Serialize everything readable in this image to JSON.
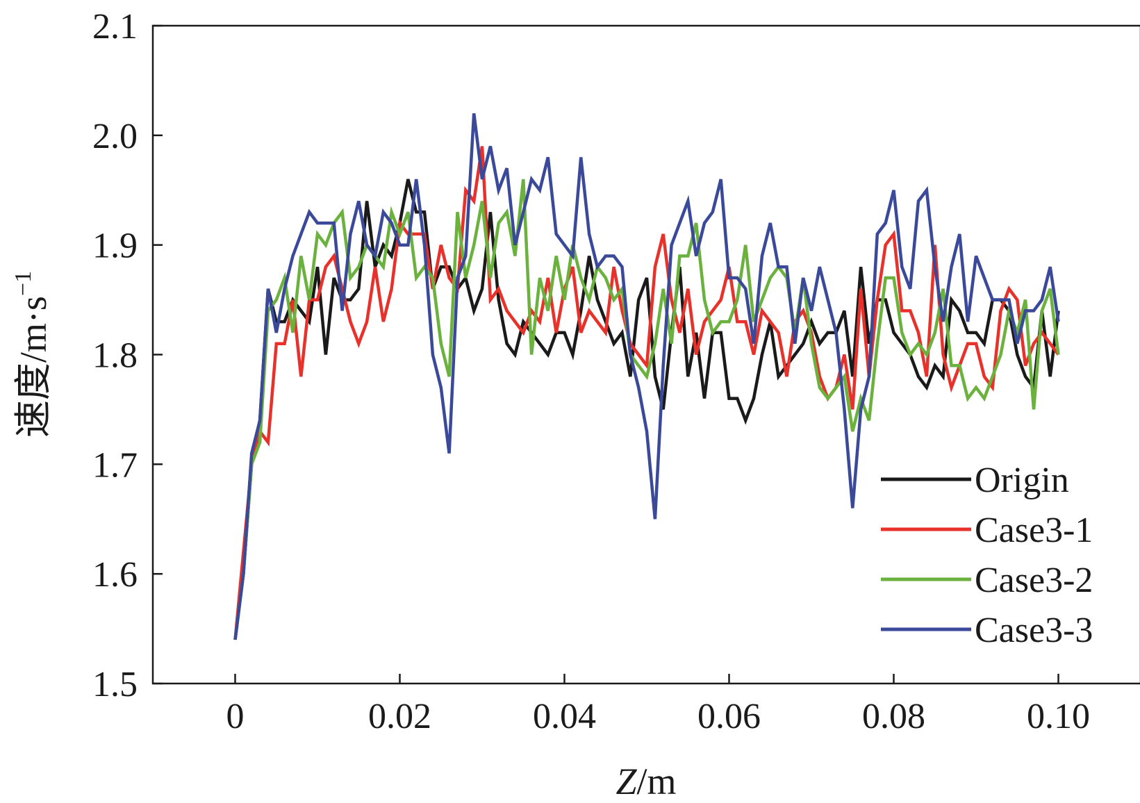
{
  "chart_data": {
    "type": "line",
    "xlabel_italic": "Z",
    "xlabel_rest": "/m",
    "ylabel_main": "速度/m·s",
    "ylabel_sup": "−1",
    "xlim": [
      -0.01,
      0.11
    ],
    "ylim": [
      1.5,
      2.1
    ],
    "xticks": [
      0,
      0.02,
      0.04,
      0.06,
      0.08,
      0.1
    ],
    "xtick_labels": [
      "0",
      "0.02",
      "0.04",
      "0.06",
      "0.08",
      "0.10"
    ],
    "yticks": [
      1.5,
      1.6,
      1.7,
      1.8,
      1.9,
      2.0,
      2.1
    ],
    "ytick_labels": [
      "1.5",
      "1.6",
      "1.7",
      "1.8",
      "1.9",
      "2.0",
      "2.1"
    ],
    "grid": false,
    "legend_position": "bottom-right",
    "x_start": 0,
    "x_step": 0.001,
    "series": [
      {
        "name": "Origin",
        "color": "#1a1a1a",
        "values": [
          1.54,
          1.6,
          1.7,
          1.74,
          1.86,
          1.83,
          1.83,
          1.85,
          1.84,
          1.83,
          1.88,
          1.8,
          1.87,
          1.85,
          1.85,
          1.86,
          1.94,
          1.88,
          1.9,
          1.89,
          1.92,
          1.96,
          1.93,
          1.93,
          1.86,
          1.88,
          1.88,
          1.86,
          1.87,
          1.84,
          1.86,
          1.93,
          1.85,
          1.81,
          1.8,
          1.83,
          1.82,
          1.81,
          1.8,
          1.82,
          1.82,
          1.8,
          1.84,
          1.89,
          1.85,
          1.83,
          1.81,
          1.82,
          1.78,
          1.85,
          1.87,
          1.78,
          1.75,
          1.82,
          1.88,
          1.78,
          1.82,
          1.76,
          1.82,
          1.82,
          1.76,
          1.76,
          1.74,
          1.76,
          1.8,
          1.83,
          1.78,
          1.79,
          1.8,
          1.81,
          1.83,
          1.81,
          1.82,
          1.82,
          1.84,
          1.78,
          1.88,
          1.81,
          1.85,
          1.85,
          1.82,
          1.81,
          1.8,
          1.78,
          1.77,
          1.79,
          1.78,
          1.85,
          1.84,
          1.82,
          1.82,
          1.81,
          1.85,
          1.85,
          1.84,
          1.8,
          1.78,
          1.77,
          1.84,
          1.78,
          1.84
        ]
      },
      {
        "name": "Case3-1",
        "color": "#e8312a",
        "values": [
          1.54,
          1.62,
          1.7,
          1.73,
          1.72,
          1.81,
          1.81,
          1.85,
          1.78,
          1.85,
          1.85,
          1.88,
          1.89,
          1.86,
          1.83,
          1.81,
          1.83,
          1.88,
          1.83,
          1.86,
          1.92,
          1.91,
          1.91,
          1.91,
          1.86,
          1.9,
          1.87,
          1.86,
          1.95,
          1.94,
          1.99,
          1.85,
          1.86,
          1.84,
          1.83,
          1.82,
          1.84,
          1.83,
          1.87,
          1.82,
          1.86,
          1.88,
          1.82,
          1.84,
          1.83,
          1.82,
          1.88,
          1.84,
          1.81,
          1.8,
          1.79,
          1.88,
          1.91,
          1.85,
          1.82,
          1.86,
          1.8,
          1.83,
          1.84,
          1.85,
          1.88,
          1.83,
          1.83,
          1.8,
          1.84,
          1.83,
          1.82,
          1.78,
          1.83,
          1.84,
          1.82,
          1.78,
          1.76,
          1.77,
          1.8,
          1.75,
          1.86,
          1.78,
          1.85,
          1.9,
          1.91,
          1.84,
          1.84,
          1.82,
          1.78,
          1.9,
          1.8,
          1.77,
          1.79,
          1.81,
          1.81,
          1.78,
          1.77,
          1.84,
          1.86,
          1.85,
          1.79,
          1.81,
          1.82,
          1.81,
          1.8
        ]
      },
      {
        "name": "Case3-2",
        "color": "#6ab23d",
        "values": [
          1.54,
          1.6,
          1.7,
          1.72,
          1.84,
          1.85,
          1.87,
          1.82,
          1.89,
          1.85,
          1.91,
          1.9,
          1.92,
          1.93,
          1.87,
          1.88,
          1.9,
          1.89,
          1.88,
          1.93,
          1.91,
          1.93,
          1.87,
          1.88,
          1.87,
          1.81,
          1.78,
          1.93,
          1.87,
          1.9,
          1.94,
          1.87,
          1.92,
          1.93,
          1.89,
          1.96,
          1.8,
          1.87,
          1.84,
          1.89,
          1.85,
          1.9,
          1.87,
          1.85,
          1.88,
          1.87,
          1.85,
          1.86,
          1.8,
          1.79,
          1.78,
          1.81,
          1.86,
          1.81,
          1.89,
          1.89,
          1.92,
          1.85,
          1.82,
          1.83,
          1.83,
          1.85,
          1.9,
          1.83,
          1.85,
          1.87,
          1.88,
          1.87,
          1.82,
          1.87,
          1.81,
          1.77,
          1.76,
          1.77,
          1.78,
          1.73,
          1.76,
          1.74,
          1.81,
          1.87,
          1.87,
          1.82,
          1.8,
          1.81,
          1.8,
          1.82,
          1.86,
          1.79,
          1.79,
          1.76,
          1.77,
          1.76,
          1.78,
          1.8,
          1.84,
          1.82,
          1.85,
          1.75,
          1.84,
          1.86,
          1.8
        ]
      },
      {
        "name": "Case3-3",
        "color": "#3a4999",
        "values": [
          1.54,
          1.6,
          1.71,
          1.74,
          1.86,
          1.82,
          1.86,
          1.89,
          1.91,
          1.93,
          1.92,
          1.92,
          1.92,
          1.84,
          1.91,
          1.94,
          1.9,
          1.89,
          1.93,
          1.92,
          1.9,
          1.9,
          1.96,
          1.9,
          1.8,
          1.77,
          1.71,
          1.87,
          1.89,
          2.02,
          1.96,
          1.99,
          1.95,
          1.97,
          1.9,
          1.93,
          1.96,
          1.95,
          1.98,
          1.91,
          1.9,
          1.89,
          1.98,
          1.91,
          1.88,
          1.89,
          1.89,
          1.88,
          1.8,
          1.77,
          1.73,
          1.65,
          1.79,
          1.9,
          1.92,
          1.94,
          1.89,
          1.92,
          1.93,
          1.96,
          1.87,
          1.87,
          1.86,
          1.81,
          1.89,
          1.92,
          1.88,
          1.88,
          1.81,
          1.87,
          1.84,
          1.88,
          1.85,
          1.82,
          1.75,
          1.66,
          1.75,
          1.78,
          1.91,
          1.92,
          1.95,
          1.88,
          1.86,
          1.94,
          1.95,
          1.88,
          1.83,
          1.88,
          1.91,
          1.83,
          1.89,
          1.87,
          1.85,
          1.85,
          1.85,
          1.81,
          1.84,
          1.84,
          1.85,
          1.88,
          1.83
        ]
      }
    ]
  }
}
